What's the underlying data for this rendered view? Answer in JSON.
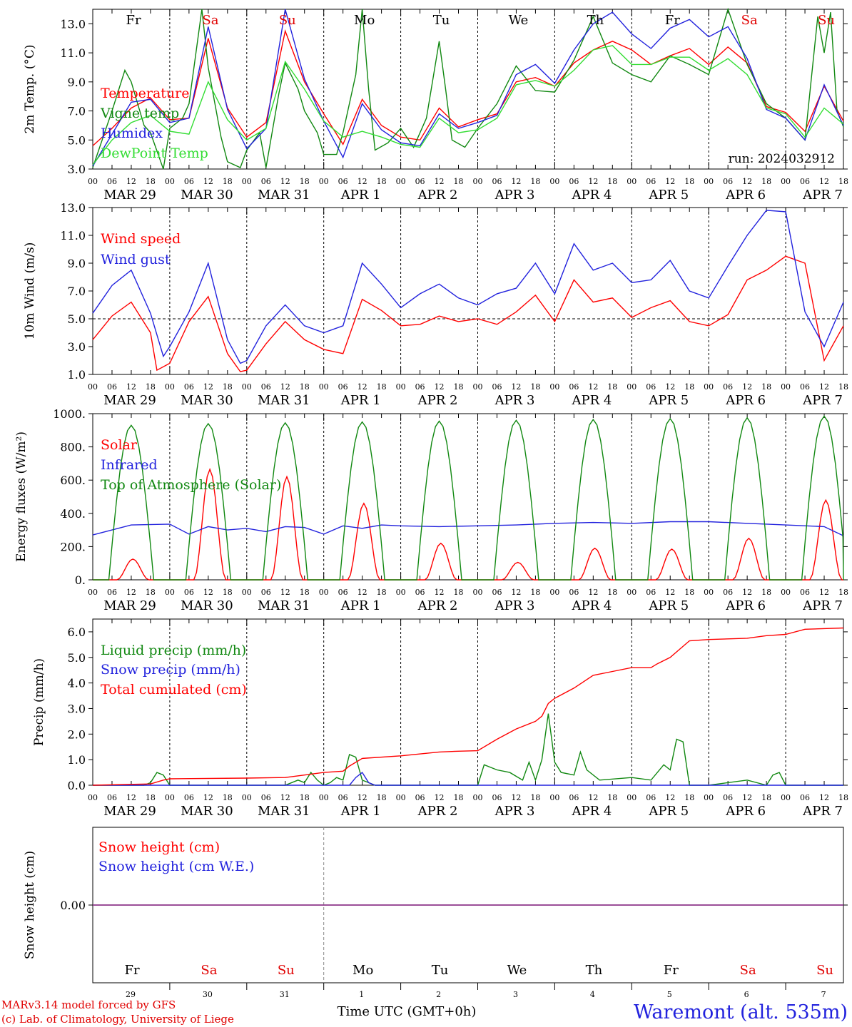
{
  "weekdays": [
    "Fr",
    "Sa",
    "Su",
    "Mo",
    "Tu",
    "We",
    "Th",
    "Fr",
    "Sa",
    "Su"
  ],
  "weekday_colors": [
    "#000000",
    "#e00000",
    "#e00000",
    "#000000",
    "#000000",
    "#000000",
    "#000000",
    "#000000",
    "#e00000",
    "#e00000"
  ],
  "day_labels": [
    "MAR 29",
    "MAR 30",
    "MAR 31",
    "APR  1",
    "APR  2",
    "APR  3",
    "APR  4",
    "APR  5",
    "APR  6",
    "APR  7"
  ],
  "day_numbers": [
    "29",
    "30",
    "31",
    "1",
    "2",
    "3",
    "4",
    "5",
    "6",
    "7"
  ],
  "hour_ticks": [
    "00",
    "06",
    "12",
    "18"
  ],
  "run_label": "run: 2024032912",
  "footer": {
    "model": "MARv3.14 model forced by GFS",
    "copyright": "(c) Lab. of Climatology, University of Liege",
    "x_title": "Time UTC (GMT+0h)",
    "station": "Waremont (alt. 535m)"
  },
  "chart_data": [
    {
      "type": "line",
      "ylabel": "2m Temp. (°C)",
      "ylim": [
        3,
        14
      ],
      "yticks": [
        "3.0",
        "5.0",
        "7.0",
        "9.0",
        "11.0",
        "13.0"
      ],
      "x_unit": "hours since MAR 29 00 UTC",
      "series": [
        {
          "name": "Temperature",
          "color": "#ff0000",
          "x": [
            0,
            6,
            12,
            18,
            24,
            30,
            36,
            42,
            48,
            54,
            60,
            66,
            72,
            78,
            84,
            90,
            96,
            102,
            108,
            114,
            120,
            126,
            132,
            138,
            144,
            150,
            156,
            162,
            168,
            174,
            180,
            186,
            192,
            198,
            204,
            210,
            216,
            222,
            228,
            234
          ],
          "values": [
            4.6,
            5.8,
            7.2,
            7.9,
            6.4,
            6.5,
            12.0,
            7.2,
            5.2,
            6.2,
            12.5,
            9.0,
            6.8,
            4.7,
            7.8,
            6.0,
            5.2,
            5.0,
            7.2,
            5.9,
            6.4,
            6.8,
            9.0,
            9.3,
            8.7,
            10.3,
            11.2,
            11.8,
            11.2,
            10.2,
            10.8,
            11.3,
            10.2,
            11.4,
            10.3,
            7.3,
            6.9,
            5.6,
            8.7,
            6.3
          ]
        },
        {
          "name": "Vigne temp",
          "color": "#118811",
          "x": [
            0,
            6,
            10,
            12,
            16,
            18,
            22,
            24,
            28,
            30,
            34,
            36,
            40,
            42,
            46,
            48,
            52,
            54,
            58,
            60,
            64,
            66,
            70,
            72,
            76,
            78,
            82,
            84,
            86,
            88,
            92,
            96,
            100,
            104,
            108,
            110,
            112,
            116,
            120,
            126,
            132,
            138,
            144,
            150,
            156,
            162,
            168,
            174,
            180,
            186,
            192,
            198,
            204,
            210,
            216,
            222,
            226,
            228,
            230,
            232,
            234
          ],
          "values": [
            3.1,
            7.0,
            9.8,
            9.0,
            6.0,
            5.5,
            3.0,
            5.8,
            6.5,
            7.5,
            14.0,
            10.0,
            5.2,
            3.5,
            3.1,
            4.3,
            5.5,
            3.1,
            8.2,
            10.3,
            8.5,
            7.0,
            5.5,
            4.0,
            4.0,
            5.5,
            9.5,
            14.0,
            8.5,
            4.3,
            4.8,
            5.8,
            4.5,
            6.5,
            11.8,
            8.5,
            5.0,
            4.5,
            5.8,
            7.5,
            10.1,
            8.4,
            8.3,
            10.5,
            13.5,
            10.3,
            9.5,
            9.0,
            10.8,
            10.2,
            9.5,
            14.0,
            10.2,
            7.5,
            6.5,
            5.0,
            13.5,
            11.0,
            13.8,
            7.0,
            5.9
          ]
        },
        {
          "name": "Humidex",
          "color": "#2222dd",
          "x": [
            0,
            6,
            12,
            18,
            24,
            30,
            36,
            42,
            48,
            54,
            60,
            66,
            72,
            78,
            84,
            90,
            96,
            102,
            108,
            114,
            120,
            126,
            132,
            138,
            144,
            150,
            156,
            162,
            168,
            174,
            180,
            186,
            192,
            198,
            204,
            210,
            216,
            222,
            228,
            234
          ],
          "values": [
            3.2,
            5.4,
            7.6,
            7.8,
            6.2,
            6.5,
            12.8,
            7.1,
            4.4,
            5.8,
            14.0,
            9.2,
            6.3,
            3.8,
            7.5,
            5.7,
            4.8,
            4.6,
            6.8,
            5.8,
            6.2,
            6.7,
            9.5,
            10.2,
            8.9,
            11.2,
            13.0,
            13.8,
            12.3,
            11.3,
            12.7,
            13.3,
            12.1,
            12.8,
            10.6,
            7.1,
            6.5,
            5.0,
            8.8,
            6.0
          ]
        },
        {
          "name": "DewPoint Temp",
          "color": "#33dd33",
          "x": [
            0,
            6,
            12,
            18,
            24,
            30,
            36,
            42,
            48,
            54,
            60,
            66,
            72,
            78,
            84,
            90,
            96,
            102,
            108,
            114,
            120,
            126,
            132,
            138,
            144,
            150,
            156,
            162,
            168,
            174,
            180,
            186,
            192,
            198,
            204,
            210,
            216,
            222,
            228,
            234
          ],
          "values": [
            3.3,
            5.0,
            6.2,
            6.7,
            5.6,
            5.4,
            9.0,
            6.4,
            5.0,
            5.8,
            10.4,
            8.5,
            6.3,
            5.2,
            5.6,
            5.2,
            4.7,
            4.5,
            6.5,
            5.5,
            5.7,
            6.5,
            8.8,
            9.1,
            8.7,
            9.8,
            11.2,
            11.5,
            10.2,
            10.2,
            10.7,
            10.7,
            9.8,
            10.6,
            9.5,
            7.2,
            6.8,
            5.2,
            7.2,
            6.1
          ]
        }
      ]
    },
    {
      "type": "line",
      "ylabel": "10m Wind (m/s)",
      "ylim": [
        1,
        13
      ],
      "yticks": [
        "1.0",
        "3.0",
        "5.0",
        "7.0",
        "9.0",
        "11.0",
        "13.0"
      ],
      "reference_line": 5.0,
      "x_unit": "hours since MAR 29 00 UTC",
      "series": [
        {
          "name": "Wind speed",
          "color": "#ff0000",
          "x": [
            0,
            6,
            12,
            18,
            20,
            24,
            30,
            36,
            42,
            46,
            48,
            54,
            60,
            66,
            72,
            78,
            84,
            90,
            96,
            102,
            108,
            114,
            120,
            126,
            132,
            138,
            144,
            150,
            156,
            162,
            168,
            174,
            180,
            186,
            192,
            198,
            204,
            210,
            216,
            222,
            228,
            234
          ],
          "values": [
            3.5,
            5.2,
            6.2,
            4.0,
            1.3,
            1.8,
            4.8,
            6.6,
            2.5,
            1.2,
            1.3,
            3.2,
            4.8,
            3.5,
            2.8,
            2.5,
            6.4,
            5.6,
            4.5,
            4.6,
            5.2,
            4.8,
            5.0,
            4.6,
            5.5,
            6.7,
            4.8,
            7.8,
            6.2,
            6.5,
            5.1,
            5.8,
            6.3,
            4.8,
            4.5,
            5.3,
            7.8,
            8.5,
            9.5,
            9.0,
            2.0,
            4.5
          ]
        },
        {
          "name": "Wind gust",
          "color": "#2222dd",
          "x": [
            0,
            6,
            12,
            18,
            22,
            24,
            30,
            36,
            42,
            46,
            48,
            54,
            60,
            66,
            72,
            78,
            84,
            90,
            96,
            102,
            108,
            114,
            120,
            126,
            132,
            138,
            144,
            150,
            156,
            162,
            168,
            174,
            180,
            186,
            192,
            198,
            204,
            210,
            216,
            222,
            228,
            234
          ],
          "values": [
            5.4,
            7.4,
            8.5,
            5.4,
            2.3,
            3.0,
            5.5,
            9.0,
            3.5,
            1.8,
            2.0,
            4.5,
            6.0,
            4.5,
            4.0,
            4.5,
            9.0,
            7.5,
            5.8,
            6.8,
            7.5,
            6.5,
            6.0,
            6.8,
            7.2,
            9.0,
            6.8,
            10.4,
            8.5,
            9.0,
            7.6,
            7.8,
            9.2,
            7.0,
            6.5,
            8.8,
            11.0,
            12.8,
            12.7,
            5.5,
            3.0,
            6.2
          ]
        }
      ]
    },
    {
      "type": "line",
      "ylabel": "Energy fluxes (W/m²)",
      "ylim": [
        0,
        1000
      ],
      "yticks": [
        "0.",
        "200.",
        "400.",
        "600.",
        "800.",
        "1000."
      ],
      "x_unit": "hours since MAR 29 00 UTC",
      "series": [
        {
          "name": "Solar",
          "color": "#ff0000",
          "daily_peaks": [
            125,
            665,
            620,
            460,
            220,
            105,
            190,
            185,
            250,
            480
          ]
        },
        {
          "name": "Infrared",
          "color": "#2222dd",
          "x": [
            0,
            12,
            24,
            30,
            36,
            42,
            48,
            54,
            60,
            66,
            72,
            78,
            84,
            90,
            96,
            108,
            120,
            132,
            144,
            156,
            168,
            180,
            192,
            204,
            216,
            228,
            234
          ],
          "values": [
            270,
            330,
            335,
            275,
            320,
            300,
            310,
            290,
            320,
            315,
            275,
            325,
            310,
            330,
            325,
            320,
            325,
            330,
            340,
            345,
            340,
            350,
            350,
            340,
            330,
            320,
            265
          ]
        },
        {
          "name": "Top of Atmosphere (Solar)",
          "color": "#118811",
          "daily_peaks": [
            930,
            940,
            945,
            950,
            955,
            960,
            965,
            970,
            975,
            985
          ]
        }
      ]
    },
    {
      "type": "line",
      "ylabel": "Precip (mm/h)",
      "ylim": [
        0,
        6.5
      ],
      "yticks": [
        "0.0",
        "1.0",
        "2.0",
        "3.0",
        "4.0",
        "5.0",
        "6.0"
      ],
      "x_unit": "hours since MAR 29 00 UTC",
      "series": [
        {
          "name": "Liquid precip (mm/h)",
          "color": "#118811",
          "x": [
            0,
            16,
            18,
            20,
            22,
            24,
            60,
            64,
            66,
            68,
            70,
            72,
            74,
            76,
            78,
            80,
            82,
            84,
            86,
            88,
            90,
            120,
            122,
            126,
            130,
            134,
            136,
            138,
            140,
            142,
            144,
            146,
            150,
            152,
            154,
            158,
            168,
            174,
            178,
            180,
            182,
            184,
            186,
            192,
            204,
            210,
            212,
            214,
            216,
            234
          ],
          "values": [
            0,
            0,
            0.1,
            0.5,
            0.4,
            0,
            0,
            0.2,
            0.1,
            0.5,
            0.2,
            0,
            0.1,
            0.3,
            0.2,
            1.2,
            1.1,
            0.2,
            0.1,
            0,
            0,
            0,
            0.8,
            0.6,
            0.5,
            0.2,
            0.9,
            0.2,
            1.0,
            2.8,
            0.9,
            0.5,
            0.4,
            1.3,
            0.6,
            0.2,
            0.3,
            0.2,
            0.8,
            0.6,
            1.8,
            1.7,
            0,
            0,
            0.2,
            0,
            0.4,
            0.5,
            0,
            0
          ]
        },
        {
          "name": "Snow precip (mm/h)",
          "color": "#2222dd",
          "x": [
            0,
            80,
            82,
            84,
            86,
            88,
            234
          ],
          "values": [
            0,
            0,
            0.3,
            0.5,
            0.1,
            0,
            0
          ]
        },
        {
          "name": "Total cumulated (cm)",
          "color": "#ff0000",
          "x": [
            0,
            18,
            22,
            24,
            48,
            60,
            66,
            72,
            78,
            80,
            84,
            96,
            108,
            114,
            120,
            126,
            132,
            138,
            140,
            142,
            144,
            150,
            156,
            162,
            168,
            174,
            176,
            180,
            186,
            192,
            204,
            210,
            216,
            222,
            234
          ],
          "values": [
            0,
            0.05,
            0.2,
            0.25,
            0.28,
            0.3,
            0.4,
            0.5,
            0.55,
            0.75,
            1.05,
            1.15,
            1.3,
            1.33,
            1.35,
            1.8,
            2.2,
            2.5,
            2.7,
            3.2,
            3.4,
            3.8,
            4.3,
            4.45,
            4.6,
            4.6,
            4.75,
            5.0,
            5.65,
            5.7,
            5.75,
            5.85,
            5.9,
            6.1,
            6.15
          ]
        }
      ]
    },
    {
      "type": "line",
      "ylabel": "Snow height (cm)",
      "ylim": [
        -1,
        1
      ],
      "yticks": [
        "0.00"
      ],
      "x_unit": "hours since MAR 29 00 UTC",
      "series": [
        {
          "name": "Snow height (cm)",
          "color": "#ff0000",
          "x": [
            0,
            234
          ],
          "values": [
            0,
            0
          ]
        },
        {
          "name": "Snow height (cm W.E.)",
          "color": "#2222dd",
          "x": [
            0,
            234
          ],
          "values": [
            0,
            0
          ]
        }
      ]
    }
  ]
}
